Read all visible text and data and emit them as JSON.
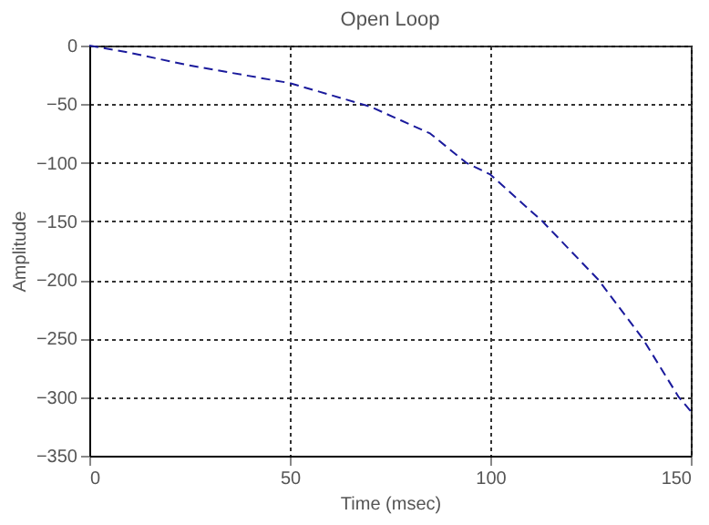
{
  "chart_data": {
    "type": "line",
    "title": "Open Loop",
    "xlabel": "Time (msec)",
    "ylabel": "Amplitude",
    "x": [
      0,
      10,
      25,
      50,
      70,
      85,
      94,
      100,
      113,
      127,
      138,
      147,
      150
    ],
    "series": [
      {
        "color": "#1a1a9c",
        "values": [
          0,
          -6,
          -17,
          -32,
          -52,
          -75,
          -100,
          -110,
          -150,
          -200,
          -250,
          -300,
          -312
        ]
      }
    ],
    "xlim": [
      0,
      150
    ],
    "xticks": [
      0,
      50,
      100,
      150
    ],
    "ylim": [
      -350,
      0
    ],
    "yticks": [
      -350,
      -300,
      -250,
      -200,
      -150,
      -100,
      -50,
      0
    ],
    "grid": true,
    "line_style": "dashed",
    "marker": "none"
  }
}
